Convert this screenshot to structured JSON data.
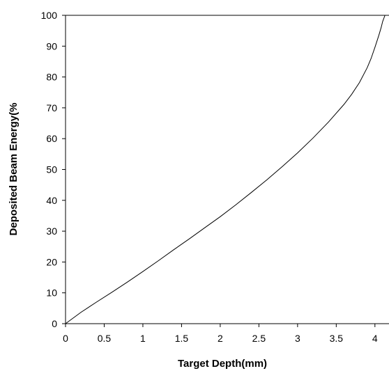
{
  "chart_data": {
    "type": "line",
    "title": "",
    "xlabel": "Target Depth(mm)",
    "ylabel": "Deposited Beam Energy(%",
    "xlim": [
      0,
      4.2
    ],
    "ylim": [
      0,
      100
    ],
    "x_ticks": [
      "0",
      "0.5",
      "1",
      "1.5",
      "2",
      "2.5",
      "3",
      "3.5",
      "4"
    ],
    "y_ticks": [
      "0",
      "10",
      "20",
      "30",
      "40",
      "50",
      "60",
      "70",
      "80",
      "90",
      "100"
    ],
    "grid": false,
    "legend": "none",
    "line_color": "#000000",
    "series": [
      {
        "x": [
          0,
          0.2,
          0.4,
          0.6,
          0.8,
          1.0,
          1.2,
          1.4,
          1.6,
          1.8,
          2.0,
          2.2,
          2.4,
          2.6,
          2.8,
          3.0,
          3.2,
          3.4,
          3.6,
          3.7,
          3.8,
          3.9,
          3.95,
          4.0,
          4.05,
          4.08,
          4.1,
          4.13
        ],
        "y": [
          0,
          3.7,
          7.0,
          10.2,
          13.5,
          16.9,
          20.4,
          24.0,
          27.5,
          31.1,
          34.7,
          38.5,
          42.5,
          46.6,
          50.9,
          55.4,
          60.2,
          65.4,
          71.1,
          74.4,
          78.2,
          83.0,
          86.0,
          89.6,
          93.5,
          96.0,
          98.0,
          100
        ]
      }
    ]
  }
}
